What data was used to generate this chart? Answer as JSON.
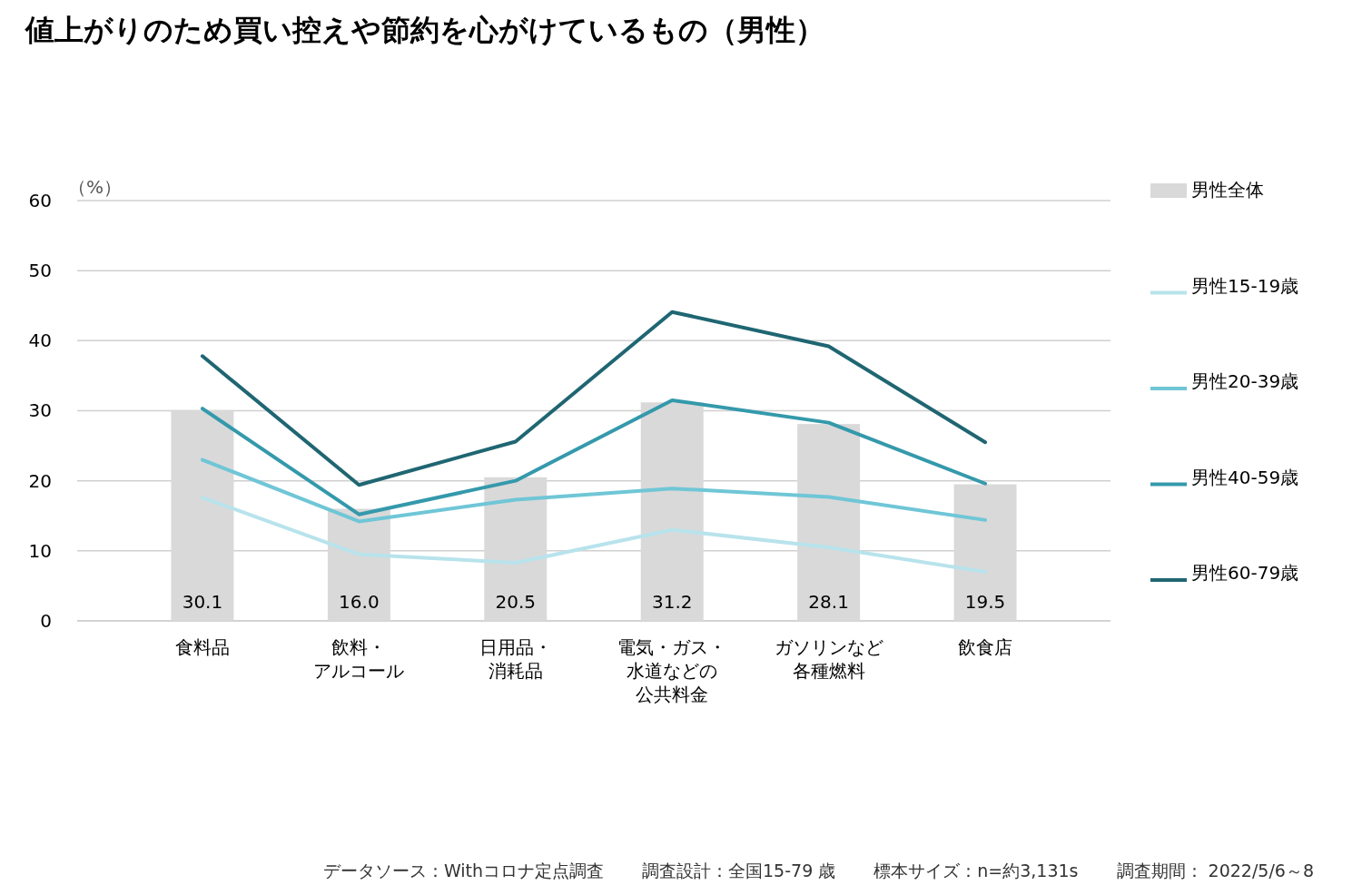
{
  "chart_data": {
    "type": "bar",
    "title": "値上がりのため買い控えや節約を心がけているもの（男性）",
    "ylabel": "（%）",
    "categories": [
      "食料品",
      "飲料・アルコール",
      "日用品・消耗品",
      "電気・ガス・水道などの公共料金",
      "ガソリンなど各種燃料",
      "飲食店"
    ],
    "series": [
      {
        "name": "男性全体",
        "color": "#d9d9d9",
        "values": [
          30.1,
          16.0,
          20.5,
          31.2,
          28.1,
          19.5
        ],
        "value_labels": [
          "30.1",
          "16.0",
          "20.5",
          "31.2",
          "28.1",
          "19.5"
        ]
      },
      {
        "name": "男性15-19歳",
        "type": "line",
        "color": "#b8e3ec",
        "values": [
          17.6,
          9.5,
          8.3,
          13.0,
          10.5,
          7.0
        ]
      },
      {
        "name": "男性20-39歳",
        "type": "line",
        "color": "#6fc6d6",
        "values": [
          23.0,
          14.2,
          17.3,
          18.9,
          17.7,
          14.4
        ]
      },
      {
        "name": "男性40-59歳",
        "type": "line",
        "color": "#3499ab",
        "values": [
          30.3,
          15.2,
          20.0,
          31.5,
          28.3,
          19.6
        ]
      },
      {
        "name": "男性60-79歳",
        "type": "line",
        "color": "#1f6672",
        "values": [
          37.8,
          19.4,
          25.6,
          44.1,
          39.2,
          25.5
        ]
      }
    ],
    "ylim": [
      0,
      60
    ],
    "yticks": [
      0,
      10,
      20,
      30,
      40,
      50,
      60
    ],
    "grid": "y",
    "legend": "right",
    "marker": "none",
    "line_style": "solid",
    "annotations": [
      "データソース：Withコロナ定点調査",
      "調査設計：全国15-79 歳",
      "標本サイズ：n=約3,131s",
      "調査期間： 2022/5/6～8"
    ]
  }
}
